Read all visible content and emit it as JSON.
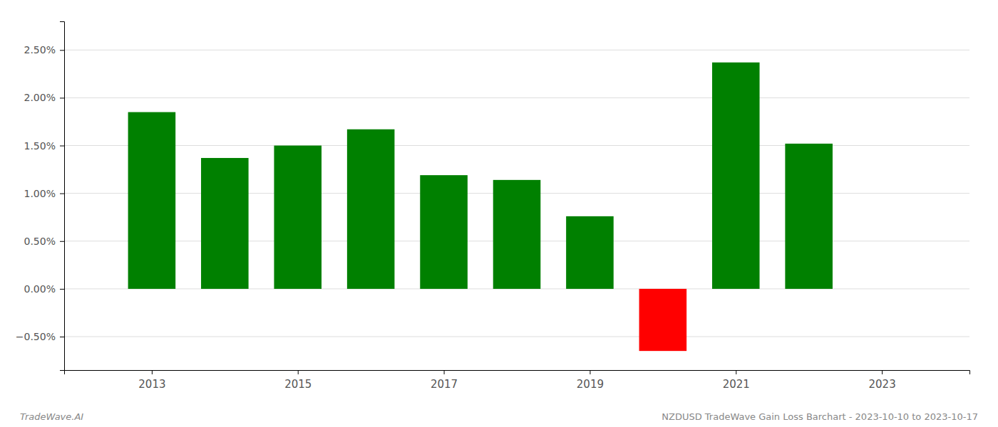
{
  "chart_data": {
    "type": "bar",
    "x": [
      2013,
      2014,
      2015,
      2016,
      2017,
      2018,
      2019,
      2020,
      2021,
      2022
    ],
    "values": [
      1.85,
      1.37,
      1.5,
      1.67,
      1.19,
      1.14,
      0.76,
      -0.65,
      2.37,
      1.52
    ],
    "colors": [
      "#008000",
      "#008000",
      "#008000",
      "#008000",
      "#008000",
      "#008000",
      "#008000",
      "#ff0000",
      "#008000",
      "#008000"
    ],
    "xlim": [
      2011.8,
      2024.2
    ],
    "xticks": [
      2013,
      2015,
      2017,
      2019,
      2021,
      2023
    ],
    "ylim": [
      -0.85,
      2.8
    ],
    "yticks": [
      {
        "value": -0.5,
        "label": "−0.50%"
      },
      {
        "value": 0,
        "label": "0.00%"
      },
      {
        "value": 0.5,
        "label": "0.50%"
      },
      {
        "value": 1.0,
        "label": "1.00%"
      },
      {
        "value": 1.5,
        "label": "1.50%"
      },
      {
        "value": 2.0,
        "label": "2.00%"
      },
      {
        "value": 2.5,
        "label": "2.50%"
      }
    ],
    "grid": true,
    "annotations": [
      "TradeWave.AI",
      "NZDUSD TradeWave Gain Loss Barchart - 2023-10-10 to 2023-10-17"
    ]
  }
}
